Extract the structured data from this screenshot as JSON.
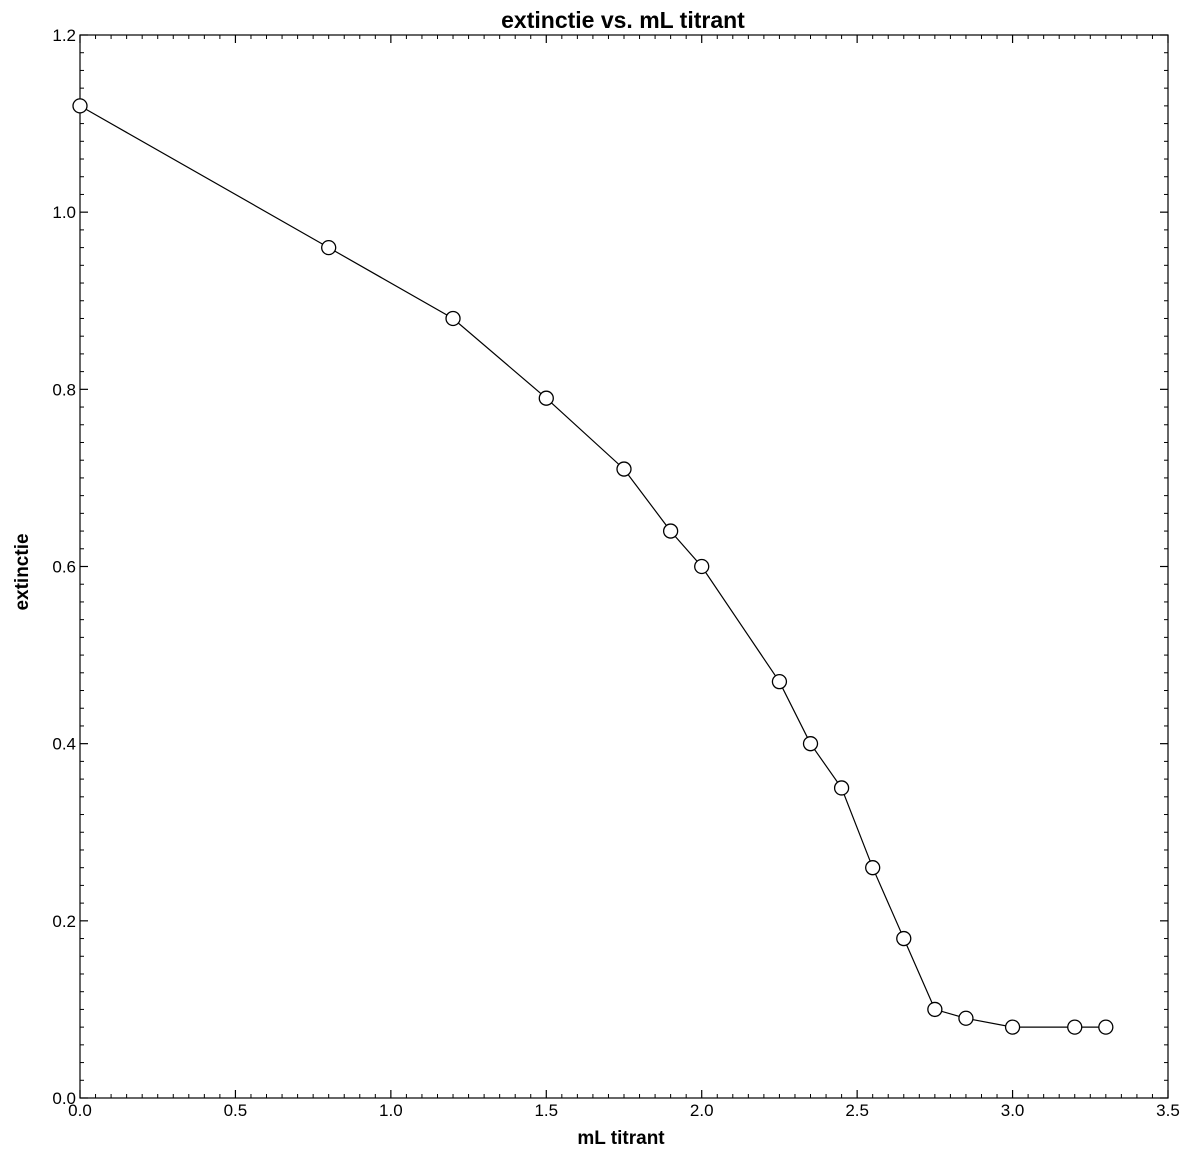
{
  "chart_data": {
    "type": "line",
    "title": "extinctie vs. mL titrant",
    "xlabel": "mL titrant",
    "ylabel": "extinctie",
    "xlim": [
      0,
      3.5
    ],
    "ylim": [
      0,
      1.2
    ],
    "x_ticks": [
      "0.0",
      "0.5",
      "1.0",
      "1.5",
      "2.0",
      "2.5",
      "3.0",
      "3.5"
    ],
    "y_ticks": [
      "0.0",
      "0.2",
      "0.4",
      "0.6",
      "0.8",
      "1.0",
      "1.2"
    ],
    "grid": false,
    "marker": "open-circle",
    "line_color": "#000000",
    "series": [
      {
        "x": [
          0.0,
          0.8,
          1.2,
          1.5,
          1.75,
          1.9,
          2.0,
          2.25,
          2.35,
          2.45,
          2.55,
          2.65,
          2.75,
          2.85,
          3.0,
          3.2,
          3.3
        ],
        "y": [
          1.12,
          0.96,
          0.88,
          0.79,
          0.71,
          0.64,
          0.6,
          0.47,
          0.4,
          0.35,
          0.26,
          0.18,
          0.1,
          0.09,
          0.08,
          0.08,
          0.08
        ]
      }
    ]
  }
}
